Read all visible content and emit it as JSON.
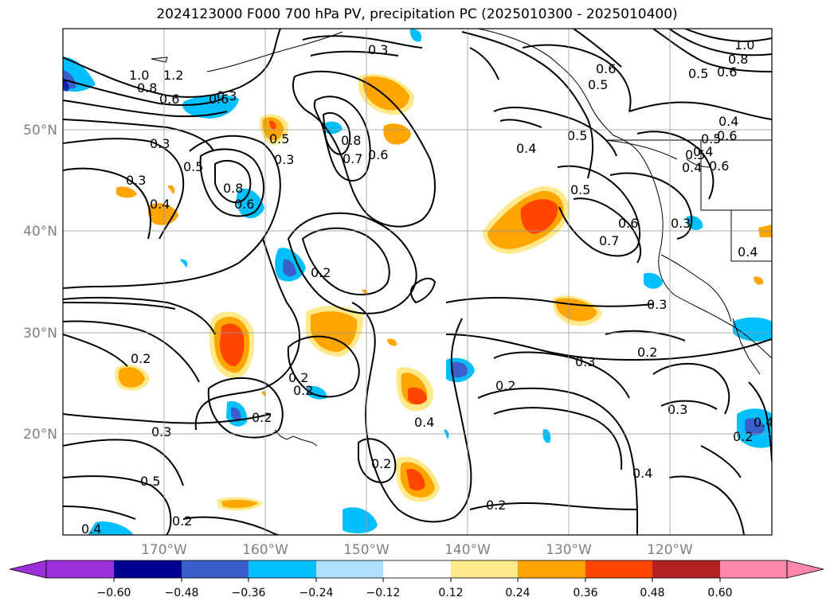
{
  "title": "2024123000 F000 700 hPa PV, precipitation PC (2025010300 - 2025010400)",
  "map": {
    "projection": "equirectangular",
    "lon_range": [
      -180,
      -110
    ],
    "lat_range": [
      10,
      60
    ],
    "gridlines": true,
    "lat_labels": [
      "50°N",
      "40°N",
      "30°N",
      "20°N"
    ],
    "lon_labels": [
      "170°W",
      "160°W",
      "150°W",
      "140°W",
      "130°W",
      "120°W"
    ],
    "contour_labels": [
      "0.3",
      "1.2",
      "1.0",
      "0.8",
      "0.6",
      "0.6",
      "0.3",
      "0.5",
      "0.3",
      "0.5",
      "0.3",
      "0.4",
      "0.8",
      "0.6",
      "0.8",
      "0.7",
      "0.6",
      "0.2",
      "0.4",
      "0.5",
      "0.5",
      "0.6",
      "0.5",
      "0.4",
      "0.6",
      "0.7",
      "0.3",
      "0.5",
      "0.4",
      "0.4",
      "0.6",
      "0.8",
      "1.0",
      "0.5",
      "0.6",
      "0.4",
      "0.2",
      "0.2",
      "0.2",
      "0.2",
      "0.4",
      "0.2",
      "0.3",
      "0.2",
      "0.3",
      "0.3",
      "0.2",
      "0.2",
      "0.3",
      "0.5",
      "0.2",
      "0.4",
      "0.2",
      "0.4",
      "0.3",
      "0.4",
      "0.6",
      "0.5"
    ]
  },
  "colorbar": {
    "ticks": [
      "−0.60",
      "−0.48",
      "−0.36",
      "−0.24",
      "−0.12",
      "0.12",
      "0.24",
      "0.36",
      "0.48",
      "0.60"
    ],
    "colors": [
      "#9b30d8",
      "#000090",
      "#3a5fcd",
      "#00bfff",
      "#b0e0ff",
      "#ffffff",
      "#ffe98a",
      "#ffa500",
      "#ff4500",
      "#b22222",
      "#ff88aa"
    ],
    "extend": "both"
  }
}
